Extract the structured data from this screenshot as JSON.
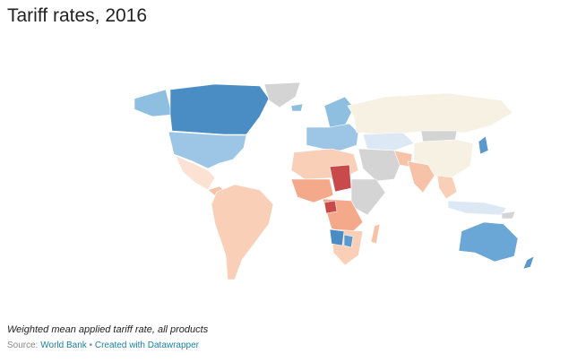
{
  "title": "Tariff rates, 2016",
  "note": "Weighted mean applied tariff rate, all products",
  "source": {
    "label": "Source:",
    "name": "World Bank",
    "separator": "•",
    "credit": "Created with Datawrapper"
  }
}
